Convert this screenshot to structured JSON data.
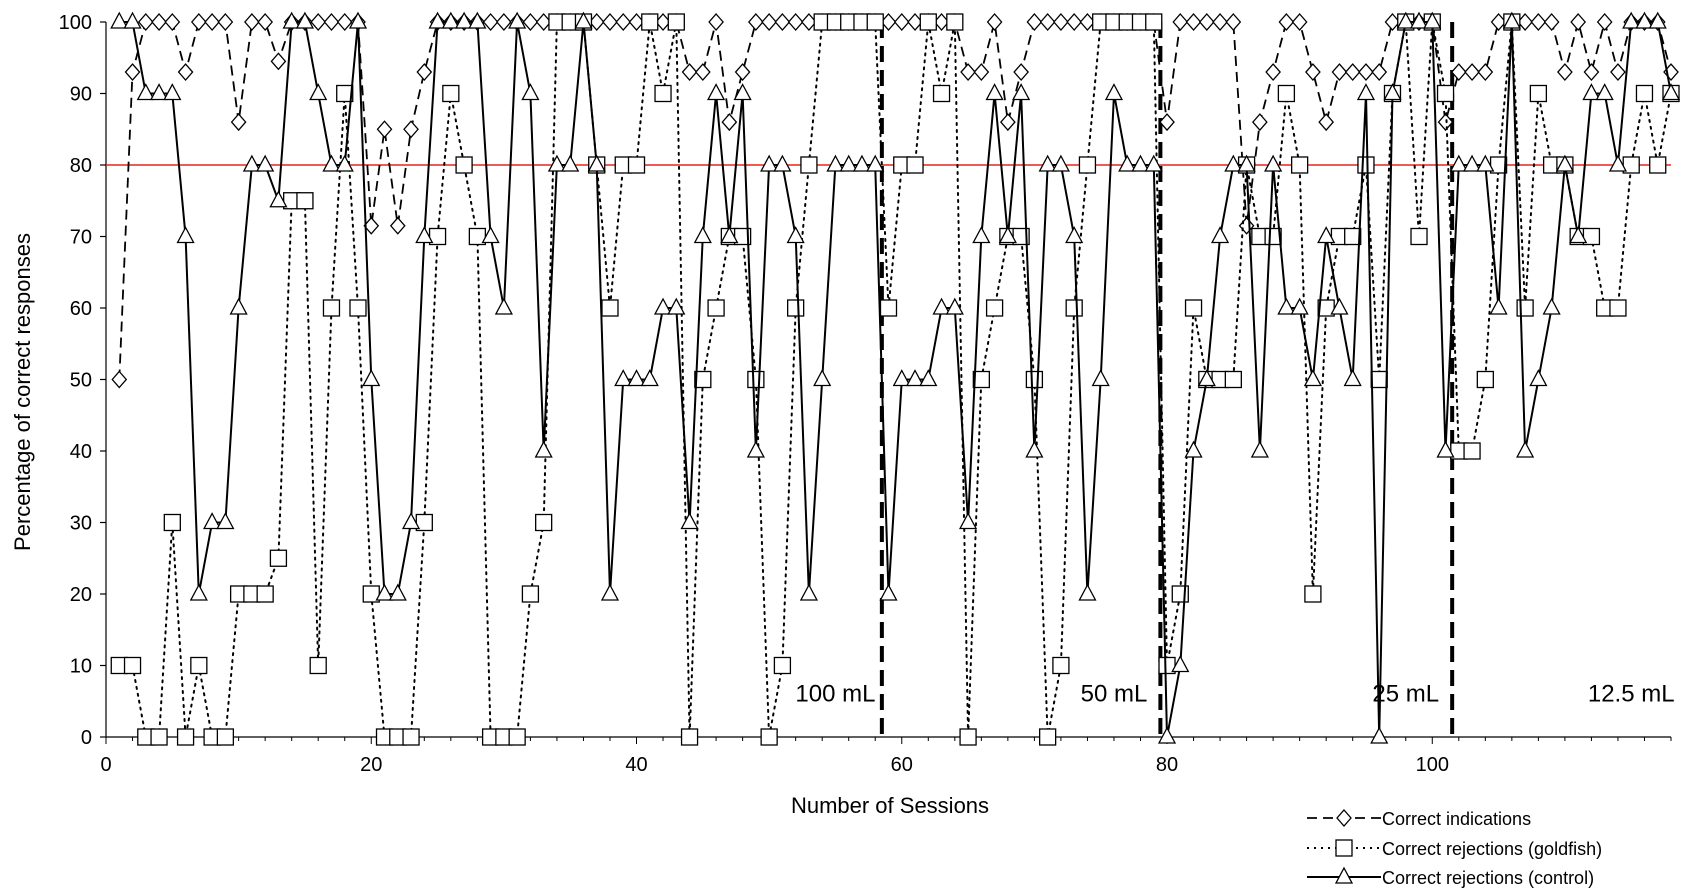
{
  "chart_data": {
    "type": "line",
    "xlabel": "Number of Sessions",
    "ylabel": "Percentage of correct responses",
    "xlim": [
      0,
      118
    ],
    "ylim": [
      0,
      100
    ],
    "x_ticks": [
      0,
      20,
      40,
      60,
      80,
      100
    ],
    "y_ticks": [
      0,
      10,
      20,
      30,
      40,
      50,
      60,
      70,
      80,
      90,
      100
    ],
    "x_tick_labels": [
      "0",
      "20",
      "40",
      "60",
      "80",
      "100"
    ],
    "y_tick_labels": [
      "0",
      "10",
      "20",
      "30",
      "40",
      "50",
      "60",
      "70",
      "80",
      "90",
      "100"
    ],
    "criterion_line": {
      "y": 80,
      "color": "#e8251c"
    },
    "phase_dividers": [
      58.5,
      79.5,
      101.5
    ],
    "phase_labels": [
      {
        "text": "100 mL",
        "x": 55,
        "y": 5
      },
      {
        "text": "50 mL",
        "x": 76,
        "y": 5
      },
      {
        "text": "25 mL",
        "x": 98,
        "y": 5
      },
      {
        "text": "12.5 mL",
        "x": 115,
        "y": 5
      }
    ],
    "series": [
      {
        "name": "Correct indications",
        "marker": "diamond",
        "style": "dashed",
        "x": [
          1,
          2,
          3,
          4,
          5,
          6,
          7,
          8,
          9,
          10,
          11,
          12,
          13,
          14,
          15,
          16,
          17,
          18,
          19,
          20,
          21,
          22,
          23,
          24,
          25,
          26,
          27,
          28,
          29,
          30,
          31,
          32,
          33,
          34,
          35,
          36,
          37,
          38,
          39,
          40,
          41,
          42,
          43,
          44,
          45,
          46,
          47,
          48,
          49,
          50,
          51,
          52,
          53,
          54,
          55,
          56,
          57,
          58,
          59,
          60,
          61,
          62,
          63,
          64,
          65,
          66,
          67,
          68,
          69,
          70,
          71,
          72,
          73,
          74,
          75,
          76,
          77,
          78,
          79,
          80,
          81,
          82,
          83,
          84,
          85,
          86,
          87,
          88,
          89,
          90,
          91,
          92,
          93,
          94,
          95,
          96,
          97,
          98,
          99,
          100,
          101,
          102,
          103,
          104,
          105,
          106,
          107,
          108,
          109,
          110,
          111,
          112,
          113,
          114,
          115,
          116,
          117,
          118
        ],
        "values": [
          50,
          93,
          100,
          100,
          100,
          93,
          100,
          100,
          100,
          86,
          100,
          100,
          94.5,
          100,
          100,
          100,
          100,
          100,
          100,
          71.5,
          85,
          71.5,
          85,
          93,
          100,
          100,
          100,
          100,
          100,
          100,
          100,
          100,
          100,
          100,
          100,
          100,
          100,
          100,
          100,
          100,
          100,
          100,
          100,
          93,
          93,
          100,
          86,
          93,
          100,
          100,
          100,
          100,
          100,
          100,
          100,
          100,
          100,
          100,
          100,
          100,
          100,
          100,
          100,
          100,
          93,
          93,
          100,
          86,
          93,
          100,
          100,
          100,
          100,
          100,
          100,
          100,
          100,
          100,
          100,
          86,
          100,
          100,
          100,
          100,
          100,
          71.5,
          86,
          93,
          100,
          100,
          93,
          86,
          93,
          93,
          93,
          93,
          100,
          100,
          100,
          100,
          86,
          93,
          93,
          93,
          100,
          100,
          100,
          100,
          100,
          93,
          100,
          93,
          100,
          93,
          100,
          100,
          100,
          93
        ]
      },
      {
        "name": "Correct rejections (goldfish)",
        "marker": "square",
        "style": "dotted",
        "x": [
          1,
          2,
          3,
          4,
          5,
          6,
          7,
          8,
          9,
          10,
          11,
          12,
          13,
          14,
          15,
          16,
          17,
          18,
          19,
          20,
          21,
          22,
          23,
          24,
          25,
          26,
          27,
          28,
          29,
          30,
          31,
          32,
          33,
          34,
          35,
          36,
          37,
          38,
          39,
          40,
          41,
          42,
          43,
          44,
          45,
          46,
          47,
          48,
          49,
          50,
          51,
          52,
          53,
          54,
          55,
          56,
          57,
          58,
          59,
          60,
          61,
          62,
          63,
          64,
          65,
          66,
          67,
          68,
          69,
          70,
          71,
          72,
          73,
          74,
          75,
          76,
          77,
          78,
          79,
          80,
          81,
          82,
          83,
          84,
          85,
          86,
          87,
          88,
          89,
          90,
          91,
          92,
          93,
          94,
          95,
          96,
          97,
          98,
          99,
          100,
          101,
          102,
          103,
          104,
          105,
          106,
          107,
          108,
          109,
          110,
          111,
          112,
          113,
          114,
          115,
          116,
          117,
          118
        ],
        "values": [
          10,
          10,
          0,
          0,
          30,
          0,
          10,
          0,
          0,
          20,
          20,
          20,
          25,
          75,
          75,
          10,
          60,
          90,
          60,
          20,
          0,
          0,
          0,
          30,
          70,
          90,
          80,
          70,
          0,
          0,
          0,
          20,
          30,
          100,
          100,
          100,
          80,
          60,
          80,
          80,
          100,
          90,
          100,
          0,
          50,
          60,
          70,
          70,
          50,
          0,
          10,
          60,
          80,
          100,
          100,
          100,
          100,
          100,
          60,
          80,
          80,
          100,
          90,
          100,
          0,
          50,
          60,
          70,
          70,
          50,
          0,
          10,
          60,
          80,
          100,
          100,
          100,
          100,
          100,
          10,
          20,
          60,
          50,
          50,
          50,
          80,
          70,
          70,
          90,
          80,
          20,
          60,
          70,
          70,
          80,
          50,
          90,
          100,
          70,
          100,
          90,
          40,
          40,
          50,
          80,
          100,
          60,
          90,
          80,
          80,
          70,
          70,
          60,
          60,
          80,
          90,
          80,
          90
        ]
      },
      {
        "name": "Correct rejections (control)",
        "marker": "triangle",
        "style": "solid",
        "x": [
          1,
          2,
          3,
          4,
          5,
          6,
          7,
          8,
          9,
          10,
          11,
          12,
          13,
          14,
          15,
          16,
          17,
          18,
          19,
          20,
          21,
          22,
          23,
          24,
          25,
          26,
          27,
          28,
          29,
          30,
          31,
          32,
          33,
          34,
          35,
          36,
          37,
          38,
          39,
          40,
          41,
          42,
          43,
          44,
          45,
          46,
          47,
          48,
          49,
          50,
          51,
          52,
          53,
          54,
          55,
          56,
          57,
          58,
          59,
          60,
          61,
          62,
          63,
          64,
          65,
          66,
          67,
          68,
          69,
          70,
          71,
          72,
          73,
          74,
          75,
          76,
          77,
          78,
          79,
          80,
          81,
          82,
          83,
          84,
          85,
          86,
          87,
          88,
          89,
          90,
          91,
          92,
          93,
          94,
          95,
          96,
          97,
          98,
          99,
          100,
          101,
          102,
          103,
          104,
          105,
          106,
          107,
          108,
          109,
          110,
          111,
          112,
          113,
          114,
          115,
          116,
          117,
          118
        ],
        "values": [
          100,
          100,
          90,
          90,
          90,
          70,
          20,
          30,
          30,
          60,
          80,
          80,
          75,
          100,
          100,
          90,
          80,
          80,
          100,
          50,
          20,
          20,
          30,
          70,
          100,
          100,
          100,
          100,
          70,
          60,
          100,
          90,
          40,
          80,
          80,
          100,
          80,
          20,
          50,
          50,
          50,
          60,
          60,
          30,
          70,
          90,
          70,
          90,
          40,
          80,
          80,
          70,
          20,
          50,
          80,
          80,
          80,
          80,
          20,
          50,
          50,
          50,
          60,
          60,
          30,
          70,
          90,
          70,
          90,
          40,
          80,
          80,
          70,
          20,
          50,
          90,
          80,
          80,
          80,
          0,
          10,
          40,
          50,
          70,
          80,
          80,
          40,
          80,
          60,
          60,
          50,
          70,
          60,
          50,
          90,
          0,
          90,
          100,
          100,
          100,
          40,
          80,
          80,
          80,
          60,
          100,
          40,
          50,
          60,
          80,
          70,
          90,
          90,
          80,
          100,
          100,
          100,
          90
        ]
      }
    ],
    "legend": {
      "position": "bottom-right",
      "entries": [
        "Correct indications",
        "Correct rejections (goldfish)",
        "Correct rejections (control)"
      ]
    },
    "grid": false
  }
}
